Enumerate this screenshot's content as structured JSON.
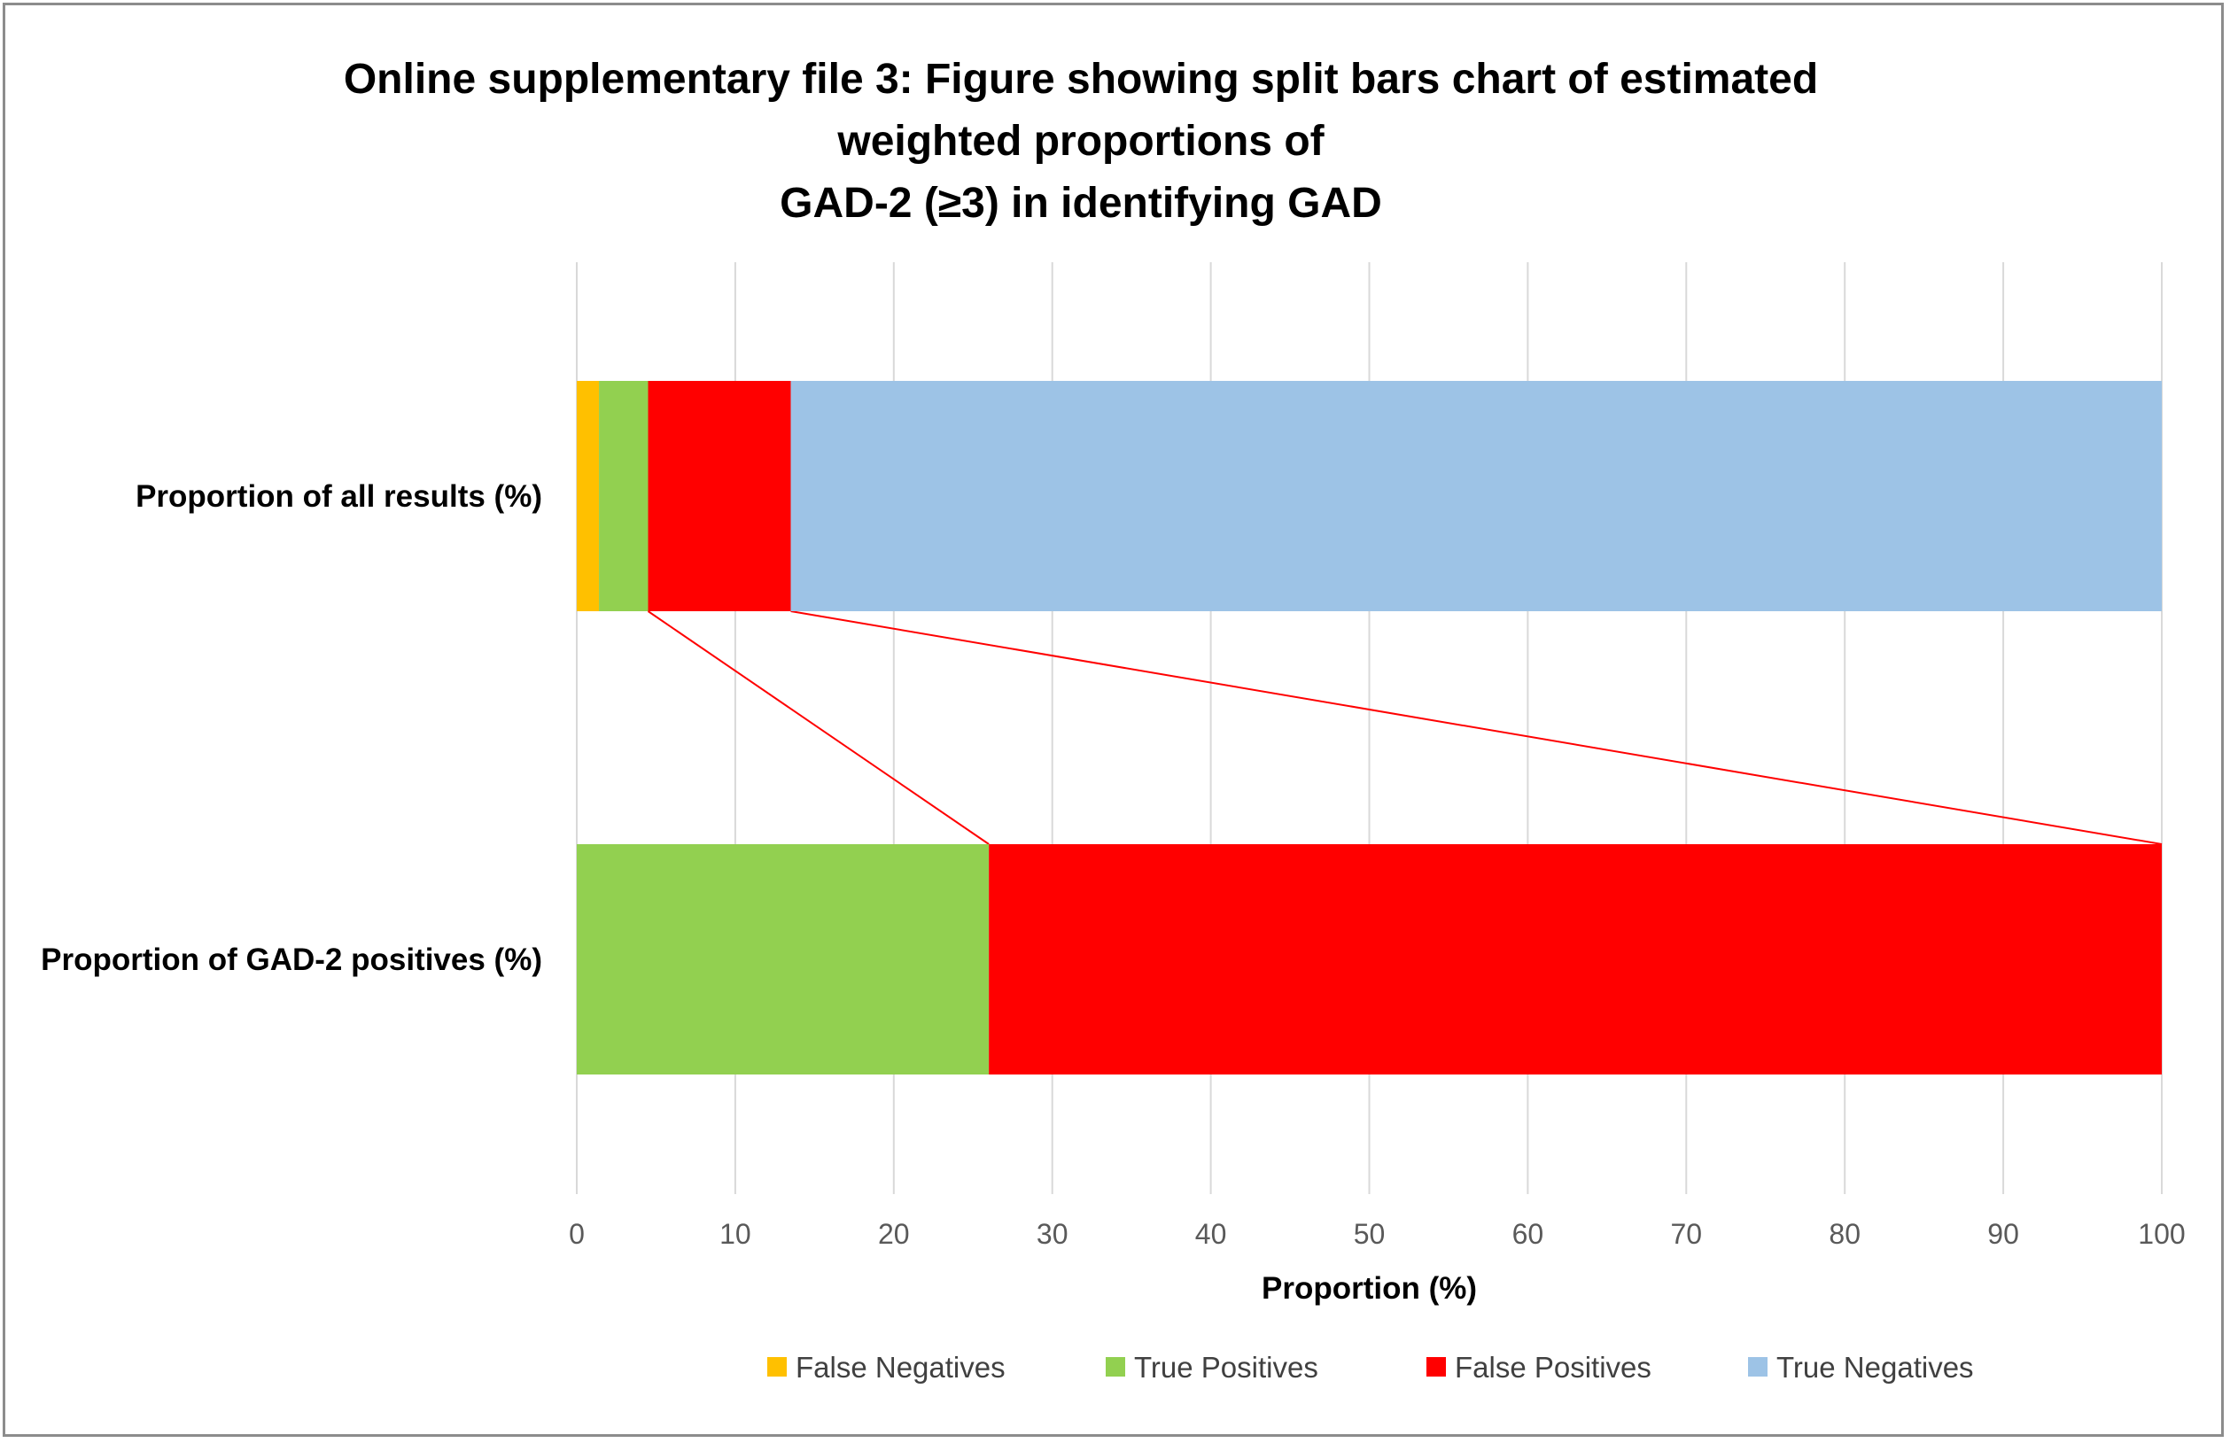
{
  "chart_data": {
    "type": "bar",
    "orientation": "horizontal",
    "stacked": true,
    "title_lines": [
      "Online supplementary file 3: Figure showing split bars chart of estimated",
      "weighted proportions of",
      "GAD-2 (≥3) in identifying GAD"
    ],
    "categories": [
      "Proportion of all results (%)",
      "Proportion of GAD-2 positives (%)"
    ],
    "series": [
      {
        "name": "False Negatives",
        "color": "#FFC000",
        "values": [
          1.4,
          0
        ]
      },
      {
        "name": "True Positives",
        "color": "#92D050",
        "values": [
          3.1,
          26
        ]
      },
      {
        "name": "False Positives",
        "color": "#FF0000",
        "values": [
          9.0,
          74
        ]
      },
      {
        "name": "True Negatives",
        "color": "#9DC3E6",
        "values": [
          86.5,
          0
        ]
      }
    ],
    "xlabel": "Proportion  (%)",
    "xlim": [
      0,
      100
    ],
    "xticks": [
      "0",
      "10",
      "20",
      "30",
      "40",
      "50",
      "60",
      "70",
      "80",
      "90",
      "100"
    ],
    "grid": "vertical",
    "legend_position": "bottom",
    "connector_color": "#FF0000"
  }
}
